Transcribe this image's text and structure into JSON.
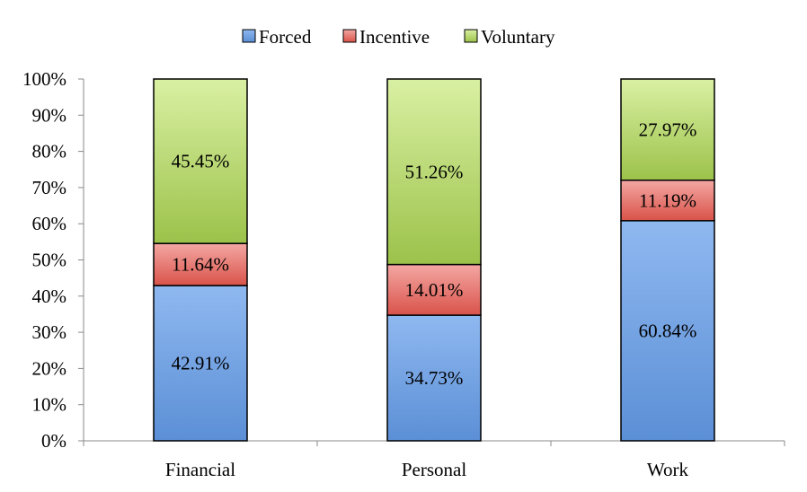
{
  "chart_data": {
    "type": "bar",
    "stacked": true,
    "categories": [
      "Financial",
      "Personal",
      "Work"
    ],
    "series": [
      {
        "name": "Forced",
        "values": [
          42.91,
          34.73,
          60.84
        ],
        "labels": [
          "42.91%",
          "34.73%",
          "60.84%"
        ],
        "color": "#8fb8f0",
        "color_dark": "#5b8fd6"
      },
      {
        "name": "Incentive",
        "values": [
          11.64,
          14.01,
          11.19
        ],
        "labels": [
          "11.64%",
          "14.01%",
          "11.19%"
        ],
        "color": "#f4a7a3",
        "color_dark": "#d9534a"
      },
      {
        "name": "Voluntary",
        "values": [
          45.45,
          51.26,
          27.97
        ],
        "labels": [
          "45.45%",
          "51.26%",
          "27.97%"
        ],
        "color": "#d9f0a3",
        "color_dark": "#9cc24a"
      }
    ],
    "ylim": [
      0,
      100
    ],
    "yticks": [
      "0%",
      "10%",
      "20%",
      "30%",
      "40%",
      "50%",
      "60%",
      "70%",
      "80%",
      "90%",
      "100%"
    ],
    "legend_position": "top",
    "grid": false,
    "title": "",
    "xlabel": "",
    "ylabel": ""
  }
}
